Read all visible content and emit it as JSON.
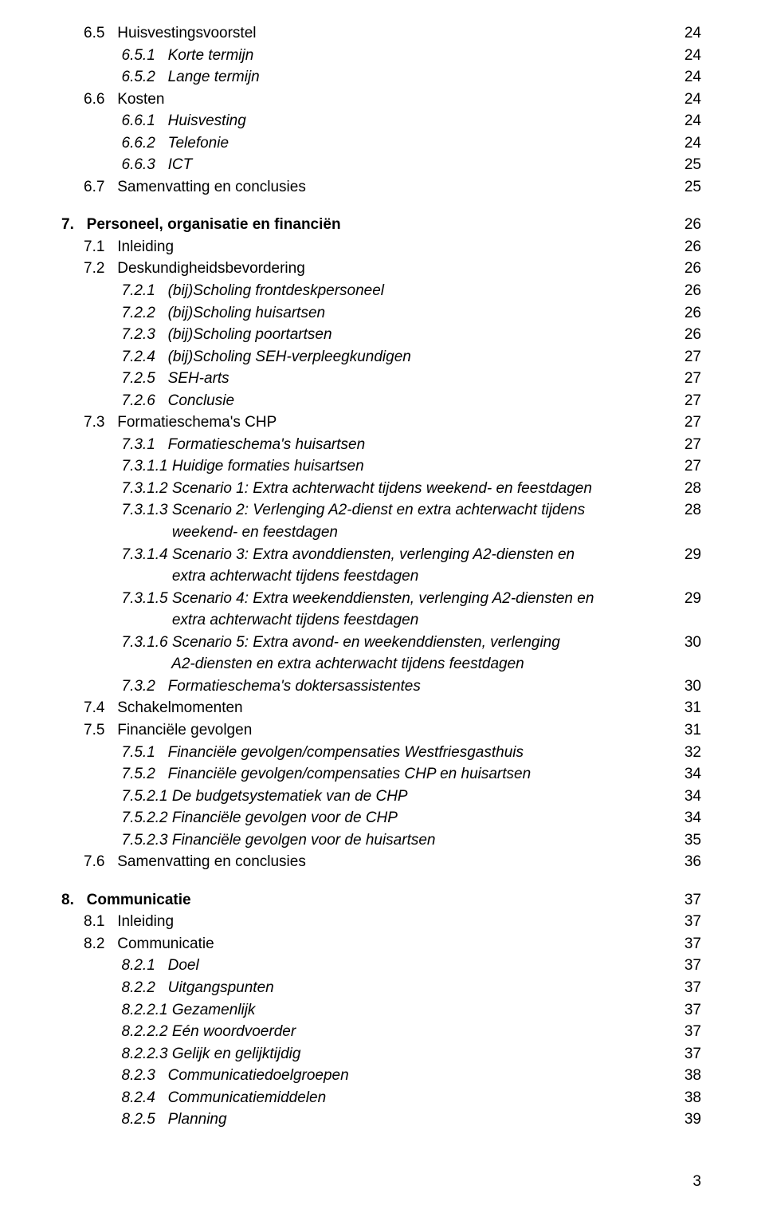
{
  "page_number": "3",
  "colors": {
    "text": "#000000",
    "background": "#ffffff"
  },
  "typography": {
    "font_family": "Arial",
    "font_size_pt": 14
  },
  "toc": [
    {
      "label": "6.5   Huisvestingsvoorstel",
      "page": "24"
    },
    {
      "label": "         6.5.1   Korte termijn",
      "page": "24",
      "italic": true
    },
    {
      "label": "         6.5.2   Lange termijn",
      "page": "24",
      "italic": true
    },
    {
      "label": "6.6   Kosten",
      "page": "24"
    },
    {
      "label": "         6.6.1   Huisvesting",
      "page": "24",
      "italic": true
    },
    {
      "label": "         6.6.2   Telefonie",
      "page": "24",
      "italic": true
    },
    {
      "label": "         6.6.3   ICT",
      "page": "25",
      "italic": true
    },
    {
      "label": "6.7   Samenvatting en conclusies",
      "page": "25"
    },
    {
      "gap": true
    },
    {
      "label": "7.   Personeel, organisatie en financiën",
      "page": "26",
      "bold": true,
      "outdent": true
    },
    {
      "label": "7.1   Inleiding",
      "page": "26"
    },
    {
      "label": "7.2   Deskundigheidsbevordering",
      "page": "26"
    },
    {
      "label": "         7.2.1   (bij)Scholing frontdeskpersoneel",
      "page": "26",
      "italic": true
    },
    {
      "label": "         7.2.2   (bij)Scholing huisartsen",
      "page": "26",
      "italic": true
    },
    {
      "label": "         7.2.3   (bij)Scholing poortartsen",
      "page": "26",
      "italic": true
    },
    {
      "label": "         7.2.4   (bij)Scholing SEH-verpleegkundigen",
      "page": "27",
      "italic": true
    },
    {
      "label": "         7.2.5   SEH-arts",
      "page": "27",
      "italic": true
    },
    {
      "label": "         7.2.6   Conclusie",
      "page": "27",
      "italic": true
    },
    {
      "label": "7.3   Formatieschema's CHP",
      "page": "27"
    },
    {
      "label": "         7.3.1   Formatieschema's huisartsen",
      "page": "27",
      "italic": true
    },
    {
      "label": "         7.3.1.1 Huidige formaties huisartsen",
      "page": "27",
      "italic": true
    },
    {
      "label": "         7.3.1.2 Scenario 1: Extra achterwacht tijdens weekend- en feestdagen",
      "page": "28",
      "italic": true
    },
    {
      "label": "         7.3.1.3 Scenario 2: Verlenging A2-dienst en extra achterwacht tijdens",
      "page": "28",
      "italic": true
    },
    {
      "label": "                     weekend- en feestdagen",
      "page": "",
      "italic": true
    },
    {
      "label": "         7.3.1.4 Scenario 3: Extra avonddiensten, verlenging A2-diensten en",
      "page": "29",
      "italic": true
    },
    {
      "label": "                     extra achterwacht tijdens feestdagen",
      "page": "",
      "italic": true
    },
    {
      "label": "         7.3.1.5 Scenario 4: Extra weekenddiensten, verlenging A2-diensten en",
      "page": "29",
      "italic": true
    },
    {
      "label": "                     extra achterwacht tijdens feestdagen",
      "page": "",
      "italic": true
    },
    {
      "label": "         7.3.1.6 Scenario 5: Extra avond- en weekenddiensten, verlenging",
      "page": "30",
      "italic": true
    },
    {
      "label": "                     A2-diensten en extra achterwacht tijdens feestdagen",
      "page": "",
      "italic": true
    },
    {
      "label": "         7.3.2   Formatieschema's doktersassistentes",
      "page": "30",
      "italic": true
    },
    {
      "label": "7.4   Schakelmomenten",
      "page": "31"
    },
    {
      "label": "7.5   Financiële gevolgen",
      "page": "31"
    },
    {
      "label": "         7.5.1   Financiële gevolgen/compensaties Westfriesgasthuis",
      "page": "32",
      "italic": true
    },
    {
      "label": "         7.5.2   Financiële gevolgen/compensaties CHP en huisartsen",
      "page": "34",
      "italic": true
    },
    {
      "label": "         7.5.2.1 De budgetsystematiek van de CHP",
      "page": "34",
      "italic": true
    },
    {
      "label": "         7.5.2.2 Financiële gevolgen voor de CHP",
      "page": "34",
      "italic": true
    },
    {
      "label": "         7.5.2.3 Financiële gevolgen voor de huisartsen",
      "page": "35",
      "italic": true
    },
    {
      "label": "7.6   Samenvatting en conclusies",
      "page": "36"
    },
    {
      "gap": true
    },
    {
      "label": "8.   Communicatie",
      "page": "37",
      "bold": true,
      "outdent": true
    },
    {
      "label": "8.1   Inleiding",
      "page": "37"
    },
    {
      "label": "8.2   Communicatie",
      "page": "37"
    },
    {
      "label": "         8.2.1   Doel",
      "page": "37",
      "italic": true
    },
    {
      "label": "         8.2.2   Uitgangspunten",
      "page": "37",
      "italic": true
    },
    {
      "label": "         8.2.2.1 Gezamenlijk",
      "page": "37",
      "italic": true
    },
    {
      "label": "         8.2.2.2 Eén woordvoerder",
      "page": "37",
      "italic": true
    },
    {
      "label": "         8.2.2.3 Gelijk en gelijktijdig",
      "page": "37",
      "italic": true
    },
    {
      "label": "         8.2.3   Communicatiedoelgroepen",
      "page": "38",
      "italic": true
    },
    {
      "label": "         8.2.4   Communicatiemiddelen",
      "page": "38",
      "italic": true
    },
    {
      "label": "         8.2.5   Planning",
      "page": "39",
      "italic": true
    }
  ]
}
